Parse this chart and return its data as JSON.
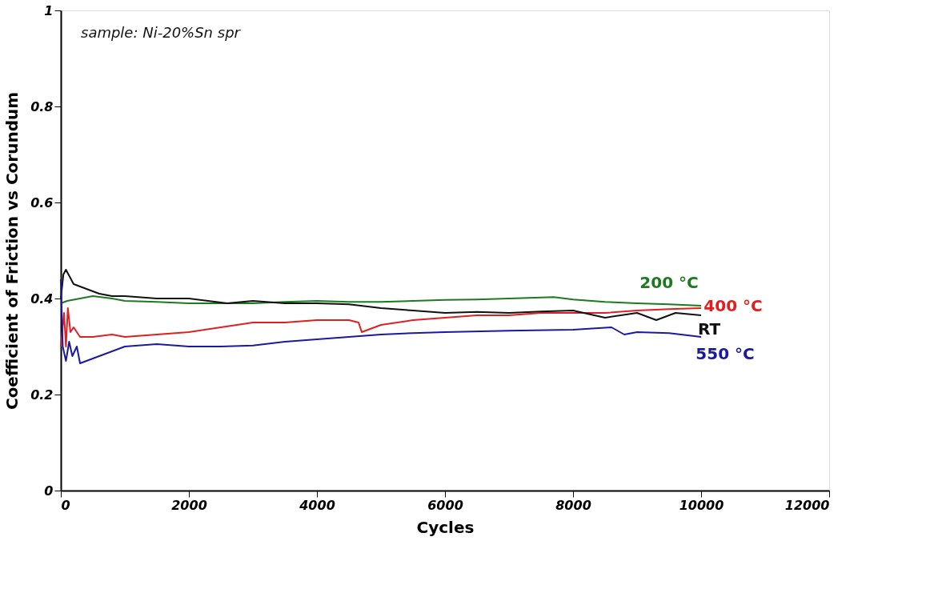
{
  "chart_data": {
    "type": "line",
    "xlabel": "Cycles",
    "ylabel": "Coefficient of Friction vs Corundum",
    "annotations": [
      "sample: Ni-20%Sn spr"
    ],
    "xlim": [
      0,
      12000
    ],
    "xticks": [
      0,
      2000,
      4000,
      6000,
      8000,
      10000,
      12000
    ],
    "ylim": [
      0,
      1
    ],
    "yticks": [
      0,
      0.2,
      0.4,
      0.6,
      0.8,
      1
    ],
    "grid": false,
    "marker": "none",
    "line_style": "solid",
    "series": [
      {
        "name": "200 °C",
        "color": "#1e7a1e",
        "x": [
          0,
          100,
          300,
          500,
          800,
          1000,
          1500,
          2000,
          2500,
          3000,
          3500,
          4000,
          4500,
          5000,
          5500,
          6000,
          6500,
          7000,
          7700,
          8000,
          8500,
          9000,
          9500,
          10000
        ],
        "values": [
          0.39,
          0.395,
          0.4,
          0.405,
          0.4,
          0.395,
          0.393,
          0.39,
          0.39,
          0.39,
          0.393,
          0.395,
          0.393,
          0.393,
          0.395,
          0.397,
          0.398,
          0.4,
          0.403,
          0.398,
          0.393,
          0.39,
          0.388,
          0.385
        ]
      },
      {
        "name": "400 °C",
        "color": "#e02020",
        "x": [
          0,
          50,
          80,
          110,
          150,
          200,
          300,
          500,
          800,
          1000,
          1500,
          2000,
          2500,
          3000,
          3500,
          4000,
          4500,
          4650,
          4700,
          5000,
          5500,
          6000,
          6500,
          7000,
          7500,
          8000,
          8500,
          9000,
          9500,
          10000
        ],
        "values": [
          0.3,
          0.37,
          0.3,
          0.38,
          0.33,
          0.34,
          0.32,
          0.32,
          0.325,
          0.32,
          0.325,
          0.33,
          0.34,
          0.35,
          0.35,
          0.355,
          0.355,
          0.35,
          0.33,
          0.345,
          0.355,
          0.36,
          0.365,
          0.365,
          0.37,
          0.37,
          0.37,
          0.375,
          0.378,
          0.38
        ]
      },
      {
        "name": "RT",
        "color": "#111111",
        "x": [
          0,
          40,
          80,
          200,
          400,
          600,
          800,
          1000,
          1500,
          2000,
          2300,
          2600,
          3000,
          3500,
          4000,
          4500,
          5000,
          5500,
          6000,
          6500,
          7000,
          7500,
          8000,
          8500,
          9000,
          9300,
          9600,
          10000
        ],
        "values": [
          0.4,
          0.45,
          0.46,
          0.43,
          0.42,
          0.41,
          0.405,
          0.405,
          0.4,
          0.4,
          0.395,
          0.39,
          0.395,
          0.39,
          0.39,
          0.388,
          0.38,
          0.375,
          0.37,
          0.372,
          0.37,
          0.373,
          0.375,
          0.36,
          0.37,
          0.355,
          0.37,
          0.365
        ]
      },
      {
        "name": "550 °C",
        "color": "#1a1aa0",
        "x": [
          0,
          30,
          80,
          130,
          180,
          250,
          300,
          400,
          600,
          1000,
          1500,
          2000,
          2500,
          3000,
          3500,
          4000,
          4500,
          5000,
          5500,
          6000,
          7000,
          8000,
          8600,
          8800,
          9000,
          9500,
          10000
        ],
        "values": [
          0.44,
          0.3,
          0.27,
          0.31,
          0.28,
          0.3,
          0.265,
          0.27,
          0.28,
          0.3,
          0.305,
          0.3,
          0.3,
          0.302,
          0.31,
          0.315,
          0.32,
          0.325,
          0.328,
          0.33,
          0.333,
          0.335,
          0.34,
          0.325,
          0.33,
          0.328,
          0.32
        ]
      }
    ]
  }
}
